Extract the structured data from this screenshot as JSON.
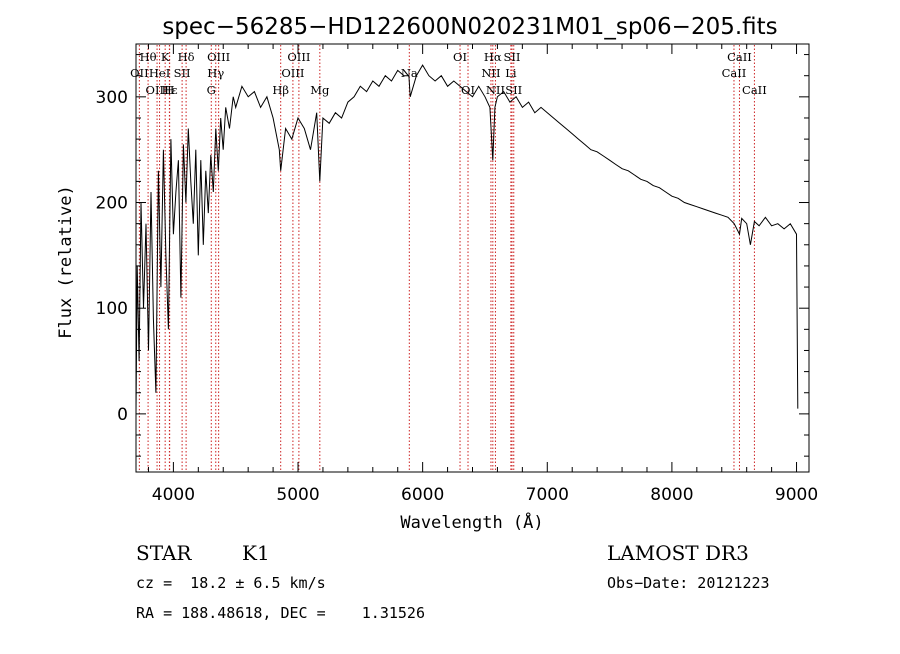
{
  "chart_data": {
    "type": "line",
    "title": "spec−56285−HD122600N020231M01_sp06−205.fits",
    "xlabel": "Wavelength (Å)",
    "ylabel": "Flux (relative)",
    "xlim": [
      3700,
      9100
    ],
    "ylim": [
      -55,
      350
    ],
    "x_ticks": [
      4000,
      5000,
      6000,
      7000,
      8000,
      9000
    ],
    "y_ticks": [
      0,
      100,
      200,
      300
    ],
    "x_tick_labels": [
      "4000",
      "5000",
      "6000",
      "7000",
      "8000",
      "9000"
    ],
    "y_tick_labels": [
      "0",
      "100",
      "200",
      "300"
    ],
    "grid": false,
    "series": [
      {
        "name": "flux",
        "color": "#000000",
        "x": [
          3700,
          3710,
          3725,
          3740,
          3760,
          3780,
          3800,
          3820,
          3840,
          3860,
          3880,
          3900,
          3920,
          3940,
          3960,
          3980,
          4000,
          4020,
          4040,
          4060,
          4080,
          4100,
          4120,
          4140,
          4160,
          4180,
          4200,
          4220,
          4240,
          4260,
          4280,
          4300,
          4320,
          4340,
          4360,
          4380,
          4400,
          4420,
          4450,
          4480,
          4500,
          4550,
          4600,
          4650,
          4700,
          4750,
          4800,
          4850,
          4861,
          4900,
          4950,
          5000,
          5050,
          5100,
          5150,
          5175,
          5200,
          5250,
          5300,
          5350,
          5400,
          5450,
          5500,
          5550,
          5600,
          5650,
          5700,
          5750,
          5800,
          5850,
          5890,
          5900,
          5950,
          6000,
          6050,
          6100,
          6150,
          6200,
          6250,
          6300,
          6350,
          6400,
          6450,
          6500,
          6540,
          6563,
          6580,
          6600,
          6650,
          6700,
          6750,
          6800,
          6850,
          6900,
          6950,
          7000,
          7050,
          7100,
          7150,
          7200,
          7250,
          7300,
          7350,
          7400,
          7450,
          7500,
          7550,
          7600,
          7650,
          7700,
          7750,
          7800,
          7850,
          7900,
          7950,
          8000,
          8050,
          8100,
          8150,
          8200,
          8250,
          8300,
          8350,
          8400,
          8450,
          8500,
          8542,
          8560,
          8600,
          8630,
          8662,
          8700,
          8750,
          8800,
          8850,
          8900,
          8950,
          9000,
          9010
        ],
        "values": [
          0,
          140,
          50,
          200,
          100,
          180,
          60,
          210,
          90,
          20,
          230,
          120,
          250,
          150,
          80,
          260,
          170,
          210,
          240,
          110,
          255,
          200,
          270,
          220,
          180,
          250,
          150,
          240,
          160,
          230,
          190,
          245,
          210,
          270,
          230,
          280,
          250,
          290,
          270,
          300,
          290,
          310,
          300,
          305,
          290,
          300,
          280,
          250,
          230,
          270,
          260,
          280,
          270,
          250,
          285,
          220,
          280,
          275,
          285,
          280,
          295,
          300,
          310,
          305,
          315,
          310,
          320,
          315,
          325,
          320,
          320,
          300,
          320,
          330,
          320,
          315,
          320,
          310,
          315,
          310,
          305,
          300,
          310,
          300,
          290,
          240,
          290,
          300,
          305,
          295,
          300,
          290,
          295,
          285,
          290,
          285,
          280,
          275,
          270,
          265,
          260,
          255,
          250,
          248,
          244,
          240,
          236,
          232,
          230,
          226,
          222,
          220,
          216,
          214,
          210,
          206,
          204,
          200,
          198,
          196,
          194,
          192,
          190,
          188,
          186,
          180,
          170,
          185,
          180,
          160,
          182,
          178,
          186,
          178,
          180,
          175,
          180,
          170,
          5
        ]
      }
    ],
    "spectral_lines": [
      {
        "name": "Hθ",
        "wavelength": 3797,
        "row": 1
      },
      {
        "name": "OII",
        "wavelength": 3727,
        "row": 2
      },
      {
        "name": "OIII",
        "wavelength": 3869,
        "row": 3
      },
      {
        "name": "K",
        "wavelength": 3934,
        "row": 1
      },
      {
        "name": "HeI",
        "wavelength": 3889,
        "row": 2
      },
      {
        "name": "Hε",
        "wavelength": 3970,
        "row": 3
      },
      {
        "name": "H",
        "wavelength": 3968,
        "row": 3
      },
      {
        "name": "Hδ",
        "wavelength": 4102,
        "row": 1
      },
      {
        "name": "SII",
        "wavelength": 4070,
        "row": 2
      },
      {
        "name": "OIII",
        "wavelength": 4363,
        "row": 1
      },
      {
        "name": "Hγ",
        "wavelength": 4340,
        "row": 2
      },
      {
        "name": "G",
        "wavelength": 4304,
        "row": 3
      },
      {
        "name": "OIII",
        "wavelength": 5007,
        "row": 1
      },
      {
        "name": "OIII",
        "wavelength": 4959,
        "row": 2
      },
      {
        "name": "Hβ",
        "wavelength": 4861,
        "row": 3
      },
      {
        "name": "Mg",
        "wavelength": 5175,
        "row": 3
      },
      {
        "name": "Na",
        "wavelength": 5893,
        "row": 2
      },
      {
        "name": "OI",
        "wavelength": 6300,
        "row": 1
      },
      {
        "name": "OI",
        "wavelength": 6364,
        "row": 3
      },
      {
        "name": "Hα",
        "wavelength": 6563,
        "row": 1
      },
      {
        "name": "NII",
        "wavelength": 6548,
        "row": 2
      },
      {
        "name": "NII",
        "wavelength": 6584,
        "row": 3
      },
      {
        "name": "SII",
        "wavelength": 6717,
        "row": 1
      },
      {
        "name": "Li",
        "wavelength": 6708,
        "row": 2
      },
      {
        "name": "SII",
        "wavelength": 6731,
        "row": 3
      },
      {
        "name": "CaII",
        "wavelength": 8542,
        "row": 1
      },
      {
        "name": "CaII",
        "wavelength": 8498,
        "row": 2
      },
      {
        "name": "CaII",
        "wavelength": 8662,
        "row": 3
      }
    ]
  },
  "info": {
    "object_class": "STAR",
    "subclass": "K1",
    "survey": "LAMOST DR3",
    "redshift_line": "cz =  18.2 ± 6.5 km/s",
    "obs_date_line": "Obs−Date: 20121223",
    "coords_line": "RA = 188.48618, DEC =    1.31526"
  },
  "colors": {
    "line_marker": "#cc2222",
    "spectrum": "#000000",
    "frame": "#000000"
  }
}
